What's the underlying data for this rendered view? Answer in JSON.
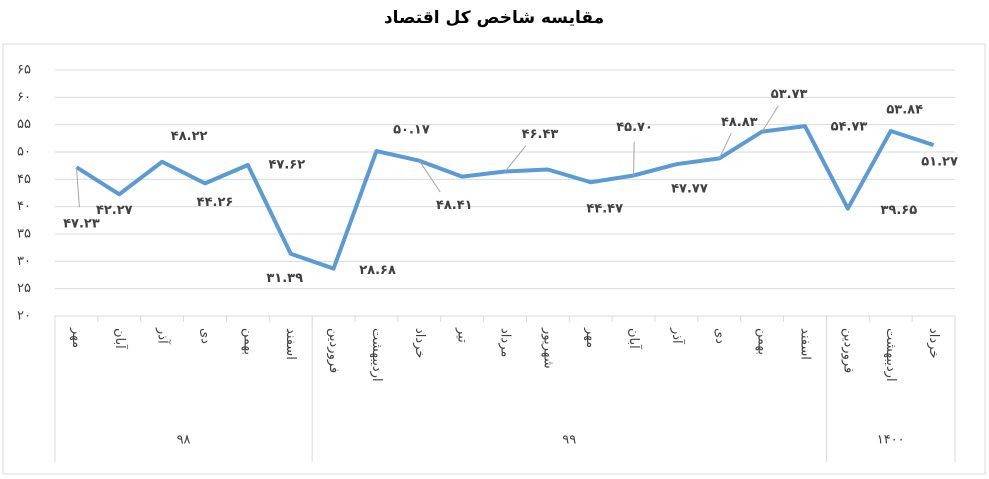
{
  "chart_data": {
    "type": "line",
    "title": "مقایسه شاخص کل اقتصاد",
    "categories": [
      "مهر",
      "آبان",
      "آذر",
      "دی",
      "بهمن",
      "اسفند",
      "فروردین",
      "اردیبهشت",
      "خرداد",
      "تیر",
      "مرداد",
      "شهریور",
      "مهر",
      "آبان",
      "آذر",
      "دی",
      "بهمن",
      "اسفند",
      "فروردین",
      "اردیبهشت",
      "خرداد"
    ],
    "groups": [
      {
        "label": "۹۸",
        "count": 6
      },
      {
        "label": "۹۹",
        "count": 12
      },
      {
        "label": "۱۴۰۰",
        "count": 3
      }
    ],
    "series": [
      {
        "name": "شاخص کل",
        "color": "#5b9bd5",
        "values": [
          47.23,
          42.27,
          48.22,
          44.26,
          47.62,
          31.39,
          28.68,
          50.17,
          48.41,
          45.5,
          46.43,
          46.8,
          44.47,
          45.7,
          47.77,
          48.83,
          53.73,
          54.73,
          39.65,
          53.84,
          51.27
        ],
        "value_labels": [
          "۴۷.۲۳",
          "۴۲.۲۷",
          "۴۸.۲۲",
          "۴۴.۲۶",
          "۴۷.۶۲",
          "۳۱.۳۹",
          "۲۸.۶۸",
          "۵۰.۱۷",
          "۴۸.۴۱",
          null,
          "۴۶.۴۳",
          null,
          "۴۴.۴۷",
          "۴۵.۷۰",
          "۴۷.۷۷",
          "۴۸.۸۳",
          "۵۳.۷۳",
          "۵۴.۷۳",
          "۳۹.۶۵",
          "۵۳.۸۴",
          "۵۱.۲۷"
        ]
      }
    ],
    "ylim": [
      20,
      65
    ],
    "yticks": [
      {
        "value": 20,
        "label": "۲۰"
      },
      {
        "value": 25,
        "label": "۲۵"
      },
      {
        "value": 30,
        "label": "۳۰"
      },
      {
        "value": 35,
        "label": "۳۵"
      },
      {
        "value": 40,
        "label": "۴۰"
      },
      {
        "value": 45,
        "label": "۴۵"
      },
      {
        "value": 50,
        "label": "۵۰"
      },
      {
        "value": 55,
        "label": "۵۵"
      },
      {
        "value": 60,
        "label": "۶۰"
      },
      {
        "value": 65,
        "label": "۶۵"
      }
    ],
    "grid": true
  }
}
